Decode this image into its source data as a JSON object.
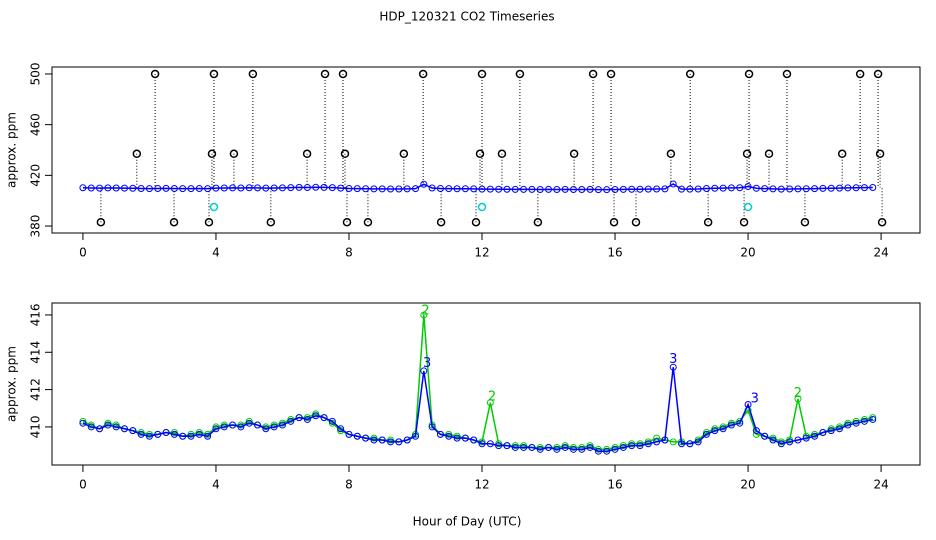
{
  "chart_data": [
    {
      "type": "line",
      "title": "HDP_120321  CO2 Timeseries",
      "ylabel": "approx. ppm",
      "xlim": [
        -0.93,
        25.17
      ],
      "xticks": [
        0,
        4,
        8,
        12,
        16,
        20,
        24
      ],
      "ylim": [
        374.5,
        505.5
      ],
      "yticks": [
        380,
        420,
        460,
        500
      ],
      "x": [
        0,
        0.25,
        0.5,
        0.75,
        1,
        1.25,
        1.5,
        1.75,
        2,
        2.25,
        2.5,
        2.75,
        3,
        3.25,
        3.5,
        3.75,
        4,
        4.25,
        4.5,
        4.75,
        5,
        5.25,
        5.5,
        5.75,
        6,
        6.25,
        6.5,
        6.75,
        7,
        7.25,
        7.5,
        7.75,
        8,
        8.25,
        8.5,
        8.75,
        9,
        9.25,
        9.5,
        9.75,
        10,
        10.25,
        10.5,
        10.75,
        11,
        11.25,
        11.5,
        11.75,
        12,
        12.25,
        12.5,
        12.75,
        13,
        13.25,
        13.5,
        13.75,
        14,
        14.25,
        14.5,
        14.75,
        15,
        15.25,
        15.5,
        15.75,
        16,
        16.25,
        16.5,
        16.75,
        17,
        17.25,
        17.5,
        17.75,
        18,
        18.25,
        18.5,
        18.75,
        19,
        19.25,
        19.5,
        19.75,
        20,
        20.25,
        20.5,
        20.75,
        21,
        21.25,
        21.5,
        21.75,
        22,
        22.25,
        22.5,
        22.75,
        23,
        23.25,
        23.5,
        23.75
      ],
      "series": [
        {
          "color": "#0000ff",
          "values": [
            410.2,
            410.0,
            409.9,
            410.1,
            410.0,
            409.9,
            409.8,
            409.6,
            409.5,
            409.6,
            409.7,
            409.6,
            409.5,
            409.5,
            409.6,
            409.5,
            409.9,
            410.0,
            410.1,
            410.0,
            410.2,
            410.1,
            409.9,
            410.0,
            410.1,
            410.3,
            410.5,
            410.4,
            410.6,
            410.5,
            410.3,
            409.9,
            409.6,
            409.5,
            409.4,
            409.3,
            409.3,
            409.2,
            409.2,
            409.3,
            409.5,
            413.0,
            410.0,
            409.6,
            409.5,
            409.4,
            409.4,
            409.3,
            409.1,
            409.1,
            409.0,
            409.0,
            408.9,
            408.9,
            408.9,
            408.8,
            408.9,
            408.8,
            408.9,
            408.8,
            408.8,
            408.9,
            408.7,
            408.7,
            408.8,
            408.9,
            409.0,
            409.0,
            409.1,
            409.2,
            409.3,
            413.2,
            409.1,
            409.1,
            409.2,
            409.6,
            409.8,
            409.9,
            410.1,
            410.2,
            411.2,
            409.8,
            409.5,
            409.3,
            409.1,
            409.2,
            409.3,
            409.4,
            409.5,
            409.7,
            409.8,
            409.9,
            410.1,
            410.2,
            410.3,
            410.4
          ]
        },
        {
          "color": "#000000",
          "stems": true,
          "x": [
            2.17,
            3.94,
            5.11,
            7.28,
            7.82,
            10.23,
            12.0,
            13.14,
            15.34,
            15.88,
            18.26,
            20.03,
            21.17,
            23.37,
            23.91,
            1.62,
            3.88,
            4.54,
            6.74,
            7.88,
            9.65,
            11.94,
            12.6,
            14.77,
            17.68,
            19.97,
            20.63,
            22.83,
            23.97,
            0.54,
            2.74,
            3.79,
            5.65,
            7.94,
            8.57,
            10.77,
            11.82,
            13.68,
            15.97,
            16.63,
            18.8,
            19.88,
            21.71,
            24.03
          ],
          "values": [
            500,
            500,
            500,
            500,
            500,
            500,
            500,
            500,
            500,
            500,
            500,
            500,
            500,
            500,
            500,
            437,
            437,
            437,
            437,
            437,
            437,
            437,
            437,
            437,
            437,
            437,
            437,
            437,
            437,
            383,
            383,
            383,
            383,
            383,
            383,
            383,
            383,
            383,
            383,
            383,
            383,
            383,
            383,
            383
          ]
        },
        {
          "color": "#00cccc",
          "x": [
            3.94,
            12.0,
            20.0
          ],
          "values": [
            395,
            395,
            395
          ]
        }
      ]
    },
    {
      "type": "line",
      "ylabel": "approx. ppm",
      "xlabel": "Hour of Day (UTC)",
      "xlim": [
        -0.93,
        25.17
      ],
      "xticks": [
        0,
        4,
        8,
        12,
        16,
        20,
        24
      ],
      "ylim": [
        407.96,
        416.64
      ],
      "yticks": [
        410,
        412,
        414,
        416
      ],
      "x": [
        0,
        0.25,
        0.5,
        0.75,
        1,
        1.25,
        1.5,
        1.75,
        2,
        2.25,
        2.5,
        2.75,
        3,
        3.25,
        3.5,
        3.75,
        4,
        4.25,
        4.5,
        4.75,
        5,
        5.25,
        5.5,
        5.75,
        6,
        6.25,
        6.5,
        6.75,
        7,
        7.25,
        7.5,
        7.75,
        8,
        8.25,
        8.5,
        8.75,
        9,
        9.25,
        9.5,
        9.75,
        10,
        10.25,
        10.5,
        10.75,
        11,
        11.25,
        11.5,
        11.75,
        12,
        12.25,
        12.5,
        12.75,
        13,
        13.25,
        13.5,
        13.75,
        14,
        14.25,
        14.5,
        14.75,
        15,
        15.25,
        15.5,
        15.75,
        16,
        16.25,
        16.5,
        16.75,
        17,
        17.25,
        17.5,
        17.75,
        18,
        18.25,
        18.5,
        18.75,
        19,
        19.25,
        19.5,
        19.75,
        20,
        20.25,
        20.5,
        20.75,
        21,
        21.25,
        21.5,
        21.75,
        22,
        22.25,
        22.5,
        22.75,
        23,
        23.25,
        23.5,
        23.75
      ],
      "series": [
        {
          "color": "#00cc00",
          "values": [
            410.3,
            410.1,
            409.9,
            410.2,
            410.1,
            409.9,
            409.8,
            409.7,
            409.6,
            409.6,
            409.7,
            409.7,
            409.5,
            409.6,
            409.7,
            409.6,
            410.0,
            410.1,
            410.1,
            410.1,
            410.3,
            410.1,
            410.0,
            410.1,
            410.2,
            410.4,
            410.5,
            410.5,
            410.7,
            410.5,
            410.2,
            409.8,
            409.6,
            409.5,
            409.4,
            409.4,
            409.3,
            409.3,
            409.2,
            409.3,
            409.6,
            416.0,
            410.1,
            409.6,
            409.6,
            409.5,
            409.4,
            409.3,
            409.2,
            411.3,
            409.1,
            409.0,
            409.0,
            409.0,
            408.9,
            408.9,
            408.9,
            408.9,
            409.0,
            408.9,
            408.9,
            409.0,
            408.8,
            408.8,
            408.9,
            409.0,
            409.1,
            409.1,
            409.2,
            409.4,
            409.3,
            409.2,
            409.2,
            409.1,
            409.3,
            409.7,
            409.9,
            410.0,
            410.2,
            410.3,
            410.9,
            409.6,
            409.5,
            409.4,
            409.2,
            409.3,
            411.5,
            409.5,
            409.6,
            409.7,
            409.9,
            410.0,
            410.2,
            410.3,
            410.4,
            410.5
          ]
        },
        {
          "color": "#0000ff",
          "values": [
            410.2,
            410.0,
            409.9,
            410.1,
            410.0,
            409.9,
            409.8,
            409.6,
            409.5,
            409.6,
            409.7,
            409.6,
            409.5,
            409.5,
            409.6,
            409.5,
            409.9,
            410.0,
            410.1,
            410.0,
            410.2,
            410.1,
            409.9,
            410.0,
            410.1,
            410.3,
            410.5,
            410.4,
            410.6,
            410.5,
            410.3,
            409.9,
            409.6,
            409.5,
            409.4,
            409.3,
            409.3,
            409.2,
            409.2,
            409.3,
            409.5,
            413.0,
            410.0,
            409.6,
            409.5,
            409.4,
            409.4,
            409.3,
            409.1,
            409.1,
            409.0,
            409.0,
            408.9,
            408.9,
            408.9,
            408.8,
            408.9,
            408.8,
            408.9,
            408.8,
            408.8,
            408.9,
            408.7,
            408.7,
            408.8,
            408.9,
            409.0,
            409.0,
            409.1,
            409.2,
            409.3,
            413.2,
            409.1,
            409.1,
            409.2,
            409.6,
            409.8,
            409.9,
            410.1,
            410.2,
            411.2,
            409.8,
            409.5,
            409.3,
            409.1,
            409.2,
            409.3,
            409.4,
            409.5,
            409.7,
            409.8,
            409.9,
            410.1,
            410.2,
            410.3,
            410.4
          ]
        }
      ],
      "annotations": [
        {
          "text": "2",
          "x": 10.3,
          "y": 416.2,
          "color": "#00cc00"
        },
        {
          "text": "3",
          "x": 10.35,
          "y": 413.4,
          "color": "#0000ff"
        },
        {
          "text": "2",
          "x": 12.3,
          "y": 411.6,
          "color": "#00cc00"
        },
        {
          "text": "3",
          "x": 17.75,
          "y": 413.6,
          "color": "#0000ff"
        },
        {
          "text": "3",
          "x": 20.2,
          "y": 411.5,
          "color": "#0000ff"
        },
        {
          "text": "2",
          "x": 21.5,
          "y": 411.8,
          "color": "#00cc00"
        }
      ]
    }
  ]
}
